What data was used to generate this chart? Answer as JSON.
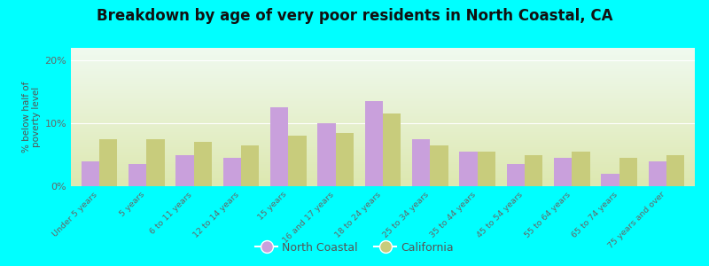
{
  "title": "Breakdown by age of very poor residents in North Coastal, CA",
  "ylabel": "% below half of\npoverty level",
  "categories": [
    "Under 5 years",
    "5 years",
    "6 to 11 years",
    "12 to 14 years",
    "15 years",
    "16 and 17 years",
    "18 to 24 years",
    "25 to 34 years",
    "35 to 44 years",
    "45 to 54 years",
    "55 to 64 years",
    "65 to 74 years",
    "75 years and over"
  ],
  "north_coastal": [
    4.0,
    3.5,
    5.0,
    4.5,
    12.5,
    10.0,
    13.5,
    7.5,
    5.5,
    3.5,
    4.5,
    2.0,
    4.0
  ],
  "california": [
    7.5,
    7.5,
    7.0,
    6.5,
    8.0,
    8.5,
    11.5,
    6.5,
    5.5,
    5.0,
    5.5,
    4.5,
    5.0
  ],
  "north_coastal_color": "#c9a0dc",
  "california_color": "#c8cc7c",
  "background_color": "#00ffff",
  "plot_bg_top": "#f0faf0",
  "plot_bg_bottom": "#dde8b0",
  "ylim": [
    0,
    22
  ],
  "yticks": [
    0,
    10,
    20
  ],
  "ytick_labels": [
    "0%",
    "10%",
    "20%"
  ],
  "title_fontsize": 12,
  "bar_width": 0.38,
  "legend_labels": [
    "North Coastal",
    "California"
  ]
}
